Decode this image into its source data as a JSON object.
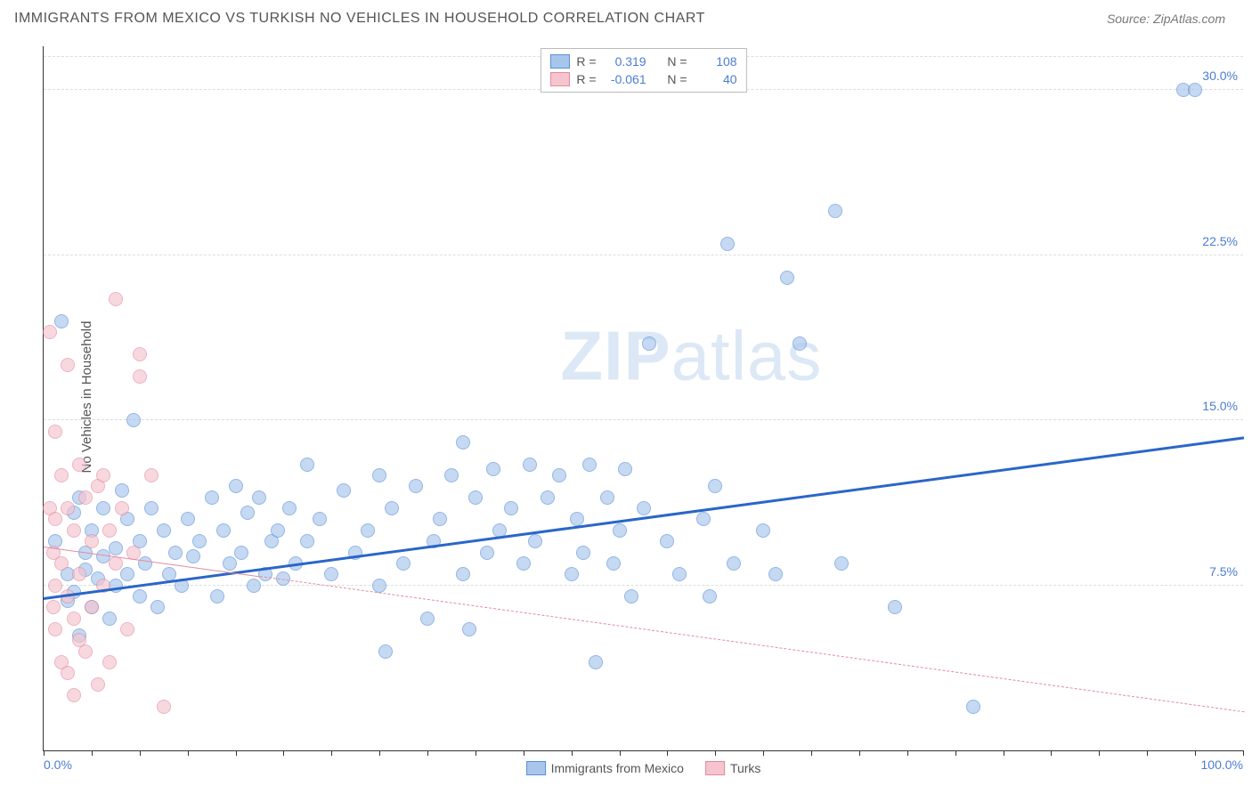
{
  "header": {
    "title": "IMMIGRANTS FROM MEXICO VS TURKISH NO VEHICLES IN HOUSEHOLD CORRELATION CHART",
    "source_prefix": "Source: ",
    "source_name": "ZipAtlas.com"
  },
  "ylabel": "No Vehicles in Household",
  "watermark": {
    "zip": "ZIP",
    "atlas": "atlas"
  },
  "chart": {
    "type": "scatter",
    "xlim": [
      0,
      100
    ],
    "ylim": [
      0,
      32
    ],
    "background_color": "#ffffff",
    "grid_color": "#dddddd",
    "axis_color": "#333333",
    "yticks": [
      {
        "value": 7.5,
        "label": "7.5%"
      },
      {
        "value": 15.0,
        "label": "15.0%"
      },
      {
        "value": 22.5,
        "label": "22.5%"
      },
      {
        "value": 30.0,
        "label": "30.0%"
      }
    ],
    "ytick_positions_extra": [
      31.5
    ],
    "xticks": [
      {
        "value": 0,
        "label": "0.0%"
      },
      {
        "value": 100,
        "label": "100.0%"
      }
    ],
    "xtick_marks": [
      0,
      4,
      8,
      12,
      16,
      20,
      24,
      28,
      32,
      36,
      40,
      44,
      48,
      52,
      56,
      60,
      64,
      68,
      72,
      76,
      80,
      84,
      88,
      92,
      96,
      100
    ],
    "series": [
      {
        "name": "Immigrants from Mexico",
        "key": "mexico",
        "point_fill": "#a8c6ec",
        "point_stroke": "#5a8fd6",
        "point_radius": 8,
        "point_opacity": 0.65,
        "trend": {
          "x1": 0,
          "y1": 7.0,
          "x2": 100,
          "y2": 14.3,
          "color": "#2a66c8",
          "width": 3,
          "dash": "solid"
        },
        "R": "0.319",
        "N": "108",
        "points": [
          [
            1,
            9.5
          ],
          [
            1.5,
            19.5
          ],
          [
            2,
            6.8
          ],
          [
            2,
            8.0
          ],
          [
            2.5,
            10.8
          ],
          [
            2.5,
            7.2
          ],
          [
            3,
            11.5
          ],
          [
            3,
            5.2
          ],
          [
            3.5,
            9.0
          ],
          [
            3.5,
            8.2
          ],
          [
            4,
            6.5
          ],
          [
            4,
            10.0
          ],
          [
            4.5,
            7.8
          ],
          [
            5,
            11.0
          ],
          [
            5,
            8.8
          ],
          [
            5.5,
            6.0
          ],
          [
            6,
            9.2
          ],
          [
            6,
            7.5
          ],
          [
            6.5,
            11.8
          ],
          [
            7,
            8.0
          ],
          [
            7,
            10.5
          ],
          [
            7.5,
            15.0
          ],
          [
            8,
            7.0
          ],
          [
            8,
            9.5
          ],
          [
            8.5,
            8.5
          ],
          [
            9,
            11.0
          ],
          [
            9.5,
            6.5
          ],
          [
            10,
            10.0
          ],
          [
            10.5,
            8.0
          ],
          [
            11,
            9.0
          ],
          [
            11.5,
            7.5
          ],
          [
            12,
            10.5
          ],
          [
            12.5,
            8.8
          ],
          [
            13,
            9.5
          ],
          [
            14,
            11.5
          ],
          [
            14.5,
            7.0
          ],
          [
            15,
            10.0
          ],
          [
            15.5,
            8.5
          ],
          [
            16,
            12.0
          ],
          [
            16.5,
            9.0
          ],
          [
            17,
            10.8
          ],
          [
            17.5,
            7.5
          ],
          [
            18,
            11.5
          ],
          [
            18.5,
            8.0
          ],
          [
            19,
            9.5
          ],
          [
            19.5,
            10.0
          ],
          [
            20,
            7.8
          ],
          [
            20.5,
            11.0
          ],
          [
            21,
            8.5
          ],
          [
            22,
            9.5
          ],
          [
            23,
            10.5
          ],
          [
            24,
            8.0
          ],
          [
            25,
            11.8
          ],
          [
            26,
            9.0
          ],
          [
            27,
            10.0
          ],
          [
            28,
            7.5
          ],
          [
            28.5,
            4.5
          ],
          [
            29,
            11.0
          ],
          [
            30,
            8.5
          ],
          [
            31,
            12.0
          ],
          [
            32,
            6.0
          ],
          [
            32.5,
            9.5
          ],
          [
            33,
            10.5
          ],
          [
            34,
            12.5
          ],
          [
            35,
            8.0
          ],
          [
            35.5,
            5.5
          ],
          [
            36,
            11.5
          ],
          [
            37,
            9.0
          ],
          [
            37.5,
            12.8
          ],
          [
            38,
            10.0
          ],
          [
            39,
            11.0
          ],
          [
            40,
            8.5
          ],
          [
            40.5,
            13.0
          ],
          [
            41,
            9.5
          ],
          [
            42,
            11.5
          ],
          [
            43,
            12.5
          ],
          [
            44,
            8.0
          ],
          [
            44.5,
            10.5
          ],
          [
            45,
            9.0
          ],
          [
            45.5,
            13.0
          ],
          [
            46,
            4.0
          ],
          [
            47,
            11.5
          ],
          [
            47.5,
            8.5
          ],
          [
            48,
            10.0
          ],
          [
            48.5,
            12.8
          ],
          [
            49,
            7.0
          ],
          [
            50,
            11.0
          ],
          [
            50.5,
            18.5
          ],
          [
            52,
            9.5
          ],
          [
            53,
            8.0
          ],
          [
            55,
            10.5
          ],
          [
            55.5,
            7.0
          ],
          [
            56,
            12.0
          ],
          [
            57,
            23.0
          ],
          [
            57.5,
            8.5
          ],
          [
            60,
            10.0
          ],
          [
            61,
            8.0
          ],
          [
            62,
            21.5
          ],
          [
            63,
            18.5
          ],
          [
            66,
            24.5
          ],
          [
            66.5,
            8.5
          ],
          [
            71,
            6.5
          ],
          [
            77.5,
            2.0
          ],
          [
            95,
            30.0
          ],
          [
            96,
            30.0
          ],
          [
            22,
            13.0
          ],
          [
            28,
            12.5
          ],
          [
            35,
            14
          ]
        ]
      },
      {
        "name": "Turks",
        "key": "turks",
        "point_fill": "#f5c4cf",
        "point_stroke": "#e38ba0",
        "point_radius": 8,
        "point_opacity": 0.65,
        "trend": {
          "x1": 0,
          "y1": 9.3,
          "x2": 100,
          "y2": 1.8,
          "color": "#e38ba0",
          "width": 1.5,
          "dash": "dashed",
          "solid_until_x": 18
        },
        "R": "-0.061",
        "N": "40",
        "points": [
          [
            0.5,
            19.0
          ],
          [
            0.5,
            11.0
          ],
          [
            0.8,
            9.0
          ],
          [
            0.8,
            6.5
          ],
          [
            1,
            14.5
          ],
          [
            1,
            10.5
          ],
          [
            1,
            7.5
          ],
          [
            1,
            5.5
          ],
          [
            1.5,
            12.5
          ],
          [
            1.5,
            8.5
          ],
          [
            1.5,
            4.0
          ],
          [
            2,
            17.5
          ],
          [
            2,
            11.0
          ],
          [
            2,
            7.0
          ],
          [
            2,
            3.5
          ],
          [
            2.5,
            10.0
          ],
          [
            2.5,
            6.0
          ],
          [
            2.5,
            2.5
          ],
          [
            3,
            13.0
          ],
          [
            3,
            8.0
          ],
          [
            3,
            5.0
          ],
          [
            3.5,
            11.5
          ],
          [
            3.5,
            4.5
          ],
          [
            4,
            9.5
          ],
          [
            4,
            6.5
          ],
          [
            4.5,
            12.0
          ],
          [
            4.5,
            3.0
          ],
          [
            5,
            12.5
          ],
          [
            5,
            7.5
          ],
          [
            5.5,
            10.0
          ],
          [
            5.5,
            4.0
          ],
          [
            6,
            20.5
          ],
          [
            6,
            8.5
          ],
          [
            6.5,
            11.0
          ],
          [
            7,
            5.5
          ],
          [
            7.5,
            9.0
          ],
          [
            8,
            18.0
          ],
          [
            8,
            17.0
          ],
          [
            9,
            12.5
          ],
          [
            10,
            2.0
          ]
        ]
      }
    ],
    "top_legend_labels": {
      "R": "R =",
      "N": "N ="
    },
    "bottom_legend": [
      {
        "series": "mexico",
        "label": "Immigrants from Mexico"
      },
      {
        "series": "turks",
        "label": "Turks"
      }
    ]
  }
}
